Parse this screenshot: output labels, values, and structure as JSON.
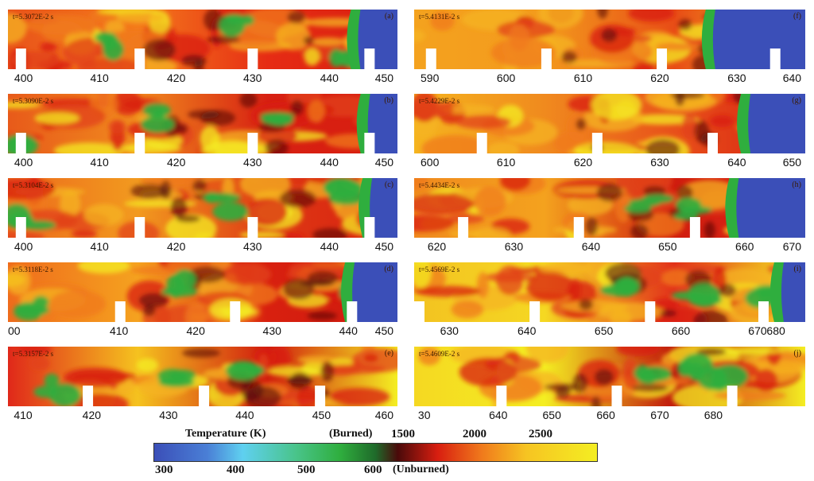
{
  "panels": [
    {
      "id": "a",
      "time": "t=5.3072E-2 s",
      "label": "(a)",
      "ticks": [
        "400",
        "410",
        "420",
        "430",
        "440",
        "450"
      ]
    },
    {
      "id": "b",
      "time": "t=5.3090E-2 s",
      "label": "(b)",
      "ticks": [
        "400",
        "410",
        "420",
        "430",
        "440",
        "450"
      ]
    },
    {
      "id": "c",
      "time": "t=5.3104E-2 s",
      "label": "(c)",
      "ticks": [
        "400",
        "410",
        "420",
        "430",
        "440",
        "450"
      ]
    },
    {
      "id": "d",
      "time": "t=5.3118E-2 s",
      "label": "(d)",
      "ticks": [
        "00",
        "410",
        "420",
        "430",
        "440",
        "450"
      ]
    },
    {
      "id": "e",
      "time": "t=5.3157E-2 s",
      "label": "(e)",
      "ticks": [
        "410",
        "420",
        "430",
        "440",
        "450",
        "460"
      ]
    },
    {
      "id": "f",
      "time": "t=5.4131E-2 s",
      "label": "(f)",
      "ticks": [
        "590",
        "600",
        "610",
        "620",
        "630",
        "640"
      ]
    },
    {
      "id": "g",
      "time": "t=5.4229E-2 s",
      "label": "(g)",
      "ticks": [
        "600",
        "610",
        "620",
        "630",
        "640",
        "650"
      ]
    },
    {
      "id": "h",
      "time": "t=5.4434E-2 s",
      "label": "(h)",
      "ticks": [
        "620",
        "630",
        "640",
        "650",
        "660",
        "670"
      ]
    },
    {
      "id": "i",
      "time": "t=5.4569E-2 s",
      "label": "(i)",
      "ticks": [
        "630",
        "640",
        "650",
        "660",
        "670",
        "680"
      ]
    },
    {
      "id": "j",
      "time": "t=5.4609E-2 s",
      "label": "(j)",
      "ticks": [
        "30",
        "640",
        "650",
        "660",
        "670",
        "680"
      ]
    }
  ],
  "colorbar": {
    "title": "Temperature (K)",
    "burned_label": "(Burned)",
    "unburned_label": "(Unburned)",
    "top_values": [
      "1500",
      "2000",
      "2500"
    ],
    "bottom_values": [
      "300",
      "400",
      "500",
      "600"
    ],
    "colors": {
      "blue": "#3b4fb8",
      "cyan": "#5fd0f0",
      "green": "#2fae3e",
      "darkred": "#4a0a0a",
      "red": "#d81e10",
      "orange": "#f07a1c",
      "yellow": "#f4ee22"
    }
  }
}
